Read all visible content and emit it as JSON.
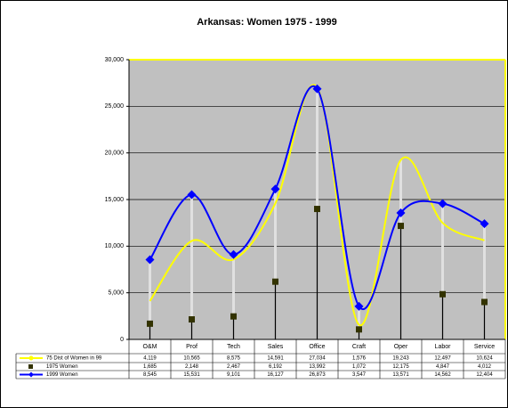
{
  "chart_data": {
    "type": "line",
    "title": "Arkansas: Women 1975 - 1999",
    "categories": [
      "O&M",
      "Prof",
      "Tech",
      "Sales",
      "Office",
      "Craft",
      "Oper",
      "Labor",
      "Service"
    ],
    "series": [
      {
        "name": "75 Dist of Women in 99",
        "color": "#ffff00",
        "style": "smooth-line",
        "values": [
          4119,
          10565,
          8575,
          14591,
          27034,
          1576,
          19243,
          12497,
          10624
        ],
        "value_labels": [
          "4,119",
          "10,565",
          "8,575",
          "14,591",
          "27,034",
          "1,576",
          "19,243",
          "12,497",
          "10,624"
        ]
      },
      {
        "name": "1975 Women",
        "color": "#333300",
        "style": "square-markers",
        "values": [
          1685,
          2148,
          2467,
          6192,
          13992,
          1072,
          12175,
          4847,
          4012
        ],
        "value_labels": [
          "1,685",
          "2,148",
          "2,467",
          "6,192",
          "13,992",
          "1,072",
          "12,175",
          "4,847",
          "4,012"
        ]
      },
      {
        "name": "1999 Women",
        "color": "#0000ff",
        "style": "smooth-line-diamonds",
        "values": [
          8545,
          15531,
          9101,
          16127,
          26873,
          3547,
          13571,
          14562,
          12404
        ],
        "value_labels": [
          "8,545",
          "15,531",
          "9,101",
          "16,127",
          "26,873",
          "3,547",
          "13,571",
          "14,562",
          "12,404"
        ]
      }
    ],
    "ylim": [
      0,
      30000
    ],
    "yticks": [
      0,
      {
        "value": 5000,
        "label": "5,000"
      },
      {
        "value": 10000,
        "label": "10,000"
      },
      {
        "value": 15000,
        "label": "15,000"
      },
      {
        "value": 20000,
        "label": "20,000"
      },
      {
        "value": 25000,
        "label": "25,000"
      },
      {
        "value": 30000,
        "label": "30,000"
      }
    ],
    "grid": true,
    "plot_background": "#c0c0c0",
    "data_table": true
  }
}
